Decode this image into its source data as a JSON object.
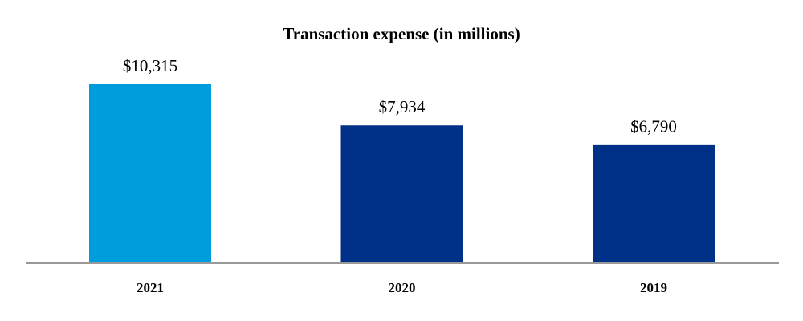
{
  "chart_data": {
    "type": "bar",
    "title": "Transaction expense (in millions)",
    "categories": [
      "2021",
      "2020",
      "2019"
    ],
    "values": [
      10315,
      7934,
      6790
    ],
    "value_labels": [
      "$10,315",
      "$7,934",
      "$6,790"
    ],
    "colors": [
      "#009ddc",
      "#003087",
      "#003087"
    ]
  }
}
